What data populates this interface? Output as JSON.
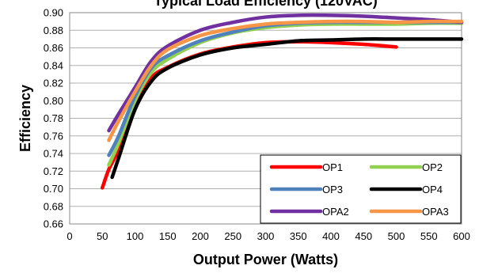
{
  "chart_data": {
    "type": "line",
    "title": "Typical Load Efficiency (120VAC)",
    "xlabel": "Output Power (Watts)",
    "ylabel": "Efficiency",
    "xlim": [
      0,
      600
    ],
    "ylim": [
      0.66,
      0.9
    ],
    "x_ticks": [
      "0",
      "50",
      "100",
      "150",
      "200",
      "250",
      "300",
      "350",
      "400",
      "450",
      "500",
      "550",
      "600"
    ],
    "y_ticks": [
      "0.66",
      "0.68",
      "0.70",
      "0.72",
      "0.74",
      "0.76",
      "0.78",
      "0.80",
      "0.82",
      "0.84",
      "0.86",
      "0.88",
      "0.90"
    ],
    "grid": true,
    "legend_position": "bottom-right",
    "series": [
      {
        "name": "OP1",
        "color": "#ff0000",
        "x": [
          50,
          60,
          75,
          100,
          125,
          150,
          200,
          250,
          300,
          350,
          400,
          450,
          500
        ],
        "y": [
          0.701,
          0.722,
          0.745,
          0.795,
          0.826,
          0.838,
          0.853,
          0.861,
          0.866,
          0.867,
          0.866,
          0.864,
          0.861
        ]
      },
      {
        "name": "OP2",
        "color": "#92d050",
        "x": [
          60,
          75,
          100,
          125,
          150,
          200,
          250,
          300,
          350,
          400,
          450,
          500,
          550,
          600
        ],
        "y": [
          0.727,
          0.752,
          0.8,
          0.832,
          0.847,
          0.866,
          0.877,
          0.883,
          0.886,
          0.887,
          0.887,
          0.887,
          0.888,
          0.888
        ]
      },
      {
        "name": "OP3",
        "color": "#4f81bd",
        "x": [
          60,
          75,
          100,
          125,
          150,
          200,
          250,
          300,
          350,
          400,
          450,
          500,
          550,
          600
        ],
        "y": [
          0.738,
          0.76,
          0.805,
          0.837,
          0.851,
          0.868,
          0.878,
          0.885,
          0.888,
          0.889,
          0.889,
          0.889,
          0.889,
          0.889
        ]
      },
      {
        "name": "OP4",
        "color": "#000000",
        "x": [
          65,
          75,
          100,
          125,
          150,
          200,
          250,
          300,
          350,
          400,
          450,
          500,
          550,
          600
        ],
        "y": [
          0.713,
          0.735,
          0.79,
          0.822,
          0.837,
          0.852,
          0.86,
          0.864,
          0.868,
          0.869,
          0.87,
          0.87,
          0.87,
          0.87
        ]
      },
      {
        "name": "OPA2",
        "color": "#7030a0",
        "x": [
          60,
          75,
          100,
          125,
          150,
          200,
          250,
          300,
          350,
          400,
          450,
          500,
          550,
          600
        ],
        "y": [
          0.766,
          0.785,
          0.815,
          0.845,
          0.862,
          0.88,
          0.889,
          0.895,
          0.897,
          0.897,
          0.896,
          0.894,
          0.892,
          0.889
        ]
      },
      {
        "name": "OPA3",
        "color": "#f79646",
        "x": [
          60,
          75,
          100,
          125,
          150,
          200,
          250,
          300,
          350,
          400,
          450,
          500,
          550,
          600
        ],
        "y": [
          0.755,
          0.777,
          0.81,
          0.84,
          0.858,
          0.874,
          0.882,
          0.887,
          0.889,
          0.89,
          0.89,
          0.889,
          0.89,
          0.89
        ]
      }
    ]
  }
}
